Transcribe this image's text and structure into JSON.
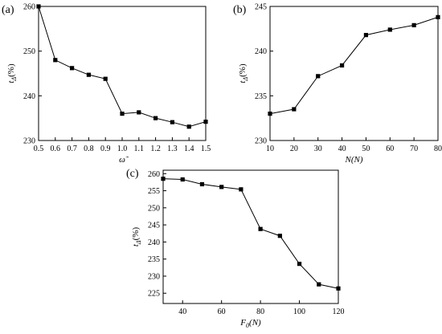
{
  "chart_data": [
    {
      "panel_label": "(a)",
      "type": "line",
      "marker": "square",
      "x": [
        0.5,
        0.6,
        0.7,
        0.8,
        0.9,
        1.0,
        1.1,
        1.2,
        1.3,
        1.4,
        1.5
      ],
      "series": [
        {
          "values": [
            260.0,
            248.0,
            246.2,
            244.7,
            243.8,
            236.0,
            236.3,
            235.0,
            234.1,
            233.1,
            234.2
          ]
        }
      ],
      "xlabel": "ω̃",
      "ylabel": "t",
      "ylabel_sub": "Δ",
      "ylabel_unit": "(%)",
      "xlim": [
        0.5,
        1.5
      ],
      "ylim": [
        230,
        260
      ],
      "xticks": [
        "0.5",
        "0.6",
        "0.7",
        "0.8",
        "0.9",
        "1.0",
        "1.1",
        "1.2",
        "1.3",
        "1.4",
        "1.5"
      ],
      "yticks": [
        "230",
        "240",
        "250",
        "260"
      ],
      "grid": false
    },
    {
      "panel_label": "(b)",
      "type": "line",
      "marker": "square",
      "x": [
        10,
        20,
        30,
        40,
        50,
        60,
        70,
        80
      ],
      "series": [
        {
          "values": [
            233.0,
            233.5,
            237.2,
            238.4,
            241.8,
            242.4,
            242.9,
            243.8
          ]
        }
      ],
      "xlabel": "N(N)",
      "ylabel": "t",
      "ylabel_sub": "Δ",
      "ylabel_unit": "(%)",
      "xlim": [
        10,
        80
      ],
      "ylim": [
        230,
        245
      ],
      "xticks": [
        "10",
        "20",
        "30",
        "40",
        "50",
        "60",
        "70",
        "80"
      ],
      "yticks": [
        "230",
        "235",
        "240",
        "245"
      ],
      "grid": false
    },
    {
      "panel_label": "(c)",
      "type": "line",
      "marker": "square",
      "x": [
        30,
        40,
        50,
        60,
        70,
        80,
        90,
        100,
        110,
        120
      ],
      "series": [
        {
          "values": [
            258.5,
            258.3,
            256.9,
            256.1,
            255.4,
            243.8,
            241.8,
            233.6,
            227.6,
            226.4
          ]
        }
      ],
      "xlabel": "F",
      "xlabel_sub": "0",
      "xlabel_unit": "(N)",
      "ylabel": "t",
      "ylabel_sub": "Δ",
      "ylabel_unit": "(%)",
      "xlim": [
        30,
        120
      ],
      "ylim": [
        222,
        261
      ],
      "xticks": [
        "40",
        "60",
        "80",
        "100",
        "120"
      ],
      "yticks": [
        "225",
        "230",
        "235",
        "240",
        "245",
        "250",
        "255",
        "260"
      ],
      "grid": false
    }
  ]
}
